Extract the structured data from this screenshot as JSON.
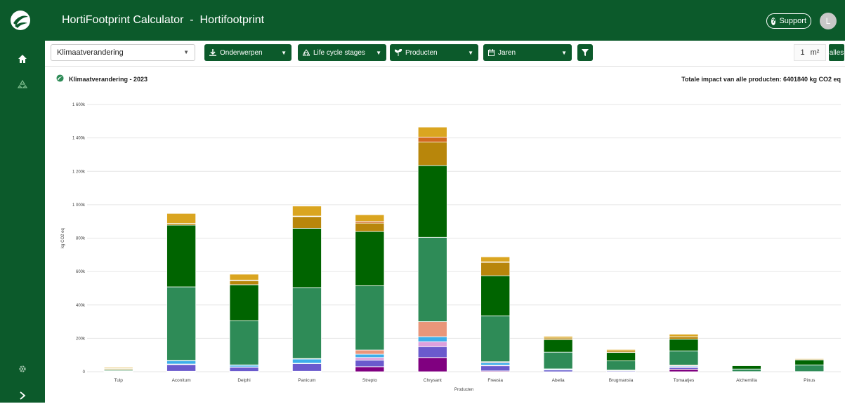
{
  "app": {
    "title": "HortiFootprint Calculator  -  Hortifootprint"
  },
  "header": {
    "support_label": "Support",
    "avatar_initial": "L"
  },
  "toolbar": {
    "impact_select": "Klimaatverandering",
    "buttons": [
      {
        "label": "Onderwerpen",
        "icon": "download-icon"
      },
      {
        "label": "Life cycle stages",
        "icon": "recycle-icon"
      },
      {
        "label": "Producten",
        "icon": "sprout-icon"
      },
      {
        "label": "Jaren",
        "icon": "calendar-icon"
      }
    ],
    "area_value": "1",
    "area_unit": "m²",
    "alles_label": "alles"
  },
  "chart_header": {
    "title": "Klimaatverandering - 2023",
    "total": "Totale impact van alle producten: 6401840 kg CO2 eq"
  },
  "chart_data": {
    "type": "bar",
    "stacked": true,
    "ylabel": "kg CO2 eq",
    "xlabel": "Producten",
    "ylim": [
      0,
      1600000
    ],
    "yticks": [
      "0",
      "200k",
      "400k",
      "600k",
      "800k",
      "1 000k",
      "1 200k",
      "1 400k",
      "1 600k"
    ],
    "categories": [
      "Tulp",
      "Aconitum",
      "Delphi",
      "Panicum",
      "Strepto",
      "Chrysant",
      "Freesia",
      "Abelia",
      "Brugmansia",
      "Tomaatjes",
      "Alchemilla",
      "Pinus"
    ],
    "series": [
      {
        "color": "#800080",
        "values": [
          1000,
          3000,
          2000,
          3000,
          30000,
          85000,
          5000,
          0,
          0,
          15000,
          0,
          0
        ]
      },
      {
        "color": "#6a5acd",
        "values": [
          2000,
          40000,
          25000,
          45000,
          40000,
          65000,
          30000,
          10000,
          5000,
          10000,
          0,
          0
        ]
      },
      {
        "color": "#dda0dd",
        "values": [
          0,
          3000,
          2000,
          3000,
          15000,
          30000,
          5000,
          0,
          0,
          5000,
          0,
          0
        ]
      },
      {
        "color": "#3daee9",
        "values": [
          1000,
          20000,
          10000,
          25000,
          20000,
          30000,
          15000,
          5000,
          3000,
          5000,
          1000,
          1000
        ]
      },
      {
        "color": "#e9967a",
        "values": [
          0,
          2000,
          2000,
          3000,
          25000,
          90000,
          5000,
          2000,
          2000,
          5000,
          0,
          0
        ]
      },
      {
        "color": "#2e8b57",
        "values": [
          5000,
          440000,
          265000,
          425000,
          385000,
          505000,
          275000,
          100000,
          55000,
          85000,
          15000,
          40000
        ]
      },
      {
        "color": "#006400",
        "values": [
          5000,
          370000,
          215000,
          355000,
          325000,
          430000,
          240000,
          75000,
          50000,
          70000,
          20000,
          30000
        ]
      },
      {
        "color": "#b8860b",
        "values": [
          5000,
          10000,
          25000,
          70000,
          50000,
          140000,
          80000,
          10000,
          10000,
          15000,
          2000,
          5000
        ]
      },
      {
        "color": "#d2691e",
        "values": [
          0,
          0,
          3000,
          3000,
          10000,
          30000,
          3000,
          0,
          0,
          0,
          0,
          0
        ]
      },
      {
        "color": "#daa520",
        "values": [
          6000,
          60000,
          35000,
          60000,
          40000,
          60000,
          30000,
          10000,
          8000,
          15000,
          2000,
          4000
        ]
      }
    ]
  }
}
